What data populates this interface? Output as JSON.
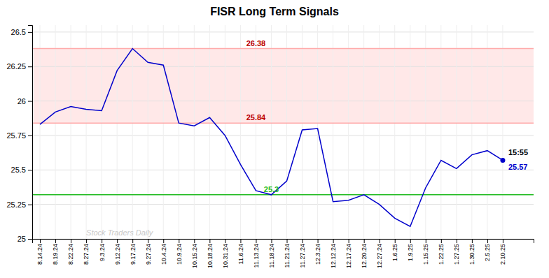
{
  "chart_data": {
    "type": "line",
    "title": "FISR Long Term Signals",
    "categories": [
      "8.14.24",
      "8.19.24",
      "8.22.24",
      "8.27.24",
      "9.3.24",
      "9.12.24",
      "9.17.24",
      "9.27.24",
      "10.4.24",
      "10.9.24",
      "10.15.24",
      "10.18.24",
      "10.31.24",
      "11.6.24",
      "11.13.24",
      "11.18.24",
      "11.21.24",
      "11.27.24",
      "12.3.24",
      "12.12.24",
      "12.17.24",
      "12.20.24",
      "12.27.24",
      "1.6.25",
      "1.9.25",
      "1.15.25",
      "1.22.25",
      "1.27.25",
      "1.30.25",
      "2.5.25",
      "2.10.25"
    ],
    "values": [
      25.83,
      25.92,
      25.96,
      25.94,
      25.93,
      26.22,
      26.38,
      26.28,
      26.26,
      25.84,
      25.82,
      25.88,
      25.75,
      25.54,
      25.35,
      25.32,
      25.42,
      25.79,
      25.8,
      25.27,
      25.28,
      25.32,
      25.25,
      25.15,
      25.09,
      25.37,
      25.57,
      25.51,
      25.61,
      25.64,
      25.57
    ],
    "color": "#0000cc",
    "ylim": [
      25.0,
      26.55
    ],
    "yticks": [
      25,
      25.25,
      25.5,
      25.75,
      26,
      26.25,
      26.5
    ],
    "grid": true,
    "band": {
      "low": 25.84,
      "high": 26.38,
      "color": "#ffe8e8"
    },
    "reference_lines": [
      {
        "value": 26.38,
        "label": "26.38",
        "color": "#ffaaaa",
        "label_color": "#bb0000"
      },
      {
        "value": 25.84,
        "label": "25.84",
        "color": "#ffaaaa",
        "label_color": "#bb0000"
      },
      {
        "value": 25.32,
        "label": "25.3",
        "color": "#22bb22",
        "label_color": "#22bb22"
      }
    ],
    "end_label": {
      "time": "15:55",
      "value_label": "25.57"
    },
    "watermark": {
      "text": "Stock Traders Daily",
      "color": "#c8c8c8"
    }
  }
}
